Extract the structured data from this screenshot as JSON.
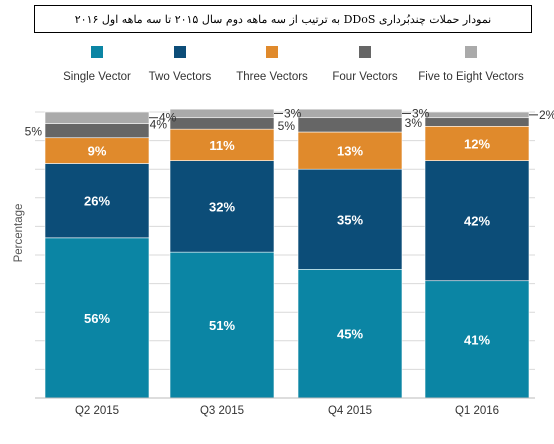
{
  "title": "نمودار حملات چندبُرداری DDoS به ترتیب از سه ماهه دوم سال ۲۰۱۵ تا سه ماهه اول ۲۰۱۶",
  "chart_data": {
    "type": "bar",
    "stacked": true,
    "normalized_100_percent": true,
    "categories": [
      "Q2 2015",
      "Q3 2015",
      "Q4 2015",
      "Q1 2016"
    ],
    "ylabel": "Percentage",
    "xlabel": "",
    "ylim": [
      0,
      100
    ],
    "grid": true,
    "legend_position": "top",
    "series": [
      {
        "name": "Single Vector",
        "color": "#0b85a4",
        "values": [
          56,
          51,
          45,
          41
        ],
        "labels": [
          "56%",
          "51%",
          "45%",
          "41%"
        ]
      },
      {
        "name": "Two Vectors",
        "color": "#0c4d78",
        "values": [
          26,
          32,
          35,
          42
        ],
        "labels": [
          "26%",
          "32%",
          "35%",
          "42%"
        ]
      },
      {
        "name": "Three Vectors",
        "color": "#e08a2c",
        "values": [
          9,
          11,
          13,
          12
        ],
        "labels": [
          "9%",
          "11%",
          "13%",
          "12%"
        ]
      },
      {
        "name": "Four Vectors",
        "color": "#666666",
        "values": [
          5,
          4,
          5,
          3
        ],
        "labels": [
          "5%",
          "4%",
          "5%",
          "3%"
        ]
      },
      {
        "name": "Five to Eight Vectors",
        "color": "#aaaaaa",
        "values": [
          4,
          3,
          3,
          2
        ],
        "labels": [
          "4%",
          "3%",
          "3%",
          "2%"
        ]
      }
    ]
  }
}
